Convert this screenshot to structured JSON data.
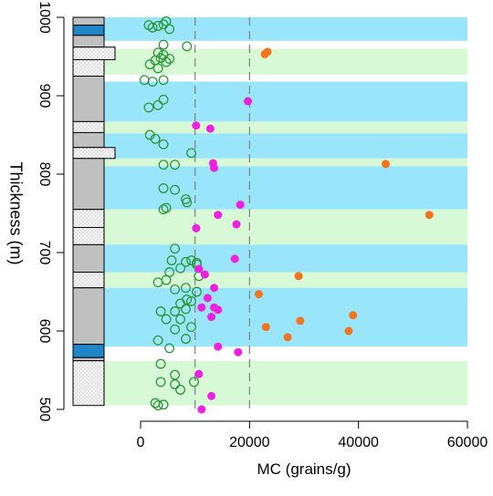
{
  "chart_data": {
    "type": "scatter",
    "xlabel": "MC (grains/g)",
    "ylabel": "Thickness (m)",
    "xlim": [
      -25000,
      60000
    ],
    "ylim": [
      500,
      1000
    ],
    "x_ticks": [
      0,
      20000,
      40000,
      60000
    ],
    "x_tick_labels": [
      "0",
      "20000",
      "40000",
      "60000"
    ],
    "y_ticks": [
      500,
      600,
      700,
      800,
      900,
      1000
    ],
    "y_tick_labels": [
      "500",
      "600",
      "700",
      "800",
      "900",
      "1000"
    ],
    "reference_lines_x": [
      10000,
      20000
    ],
    "colors": {
      "blue_band": "#99e5fb",
      "green_band": "#d8f9d6",
      "column_gray": "#c0c0c0",
      "column_blue": "#1f86c8",
      "green_marker": "#2a9a3a",
      "magenta_marker": "#f020e0",
      "orange_marker": "#f27320",
      "ref_line": "#808080"
    },
    "bands": [
      {
        "from": 970,
        "to": 1000,
        "color": "blue"
      },
      {
        "from": 927,
        "to": 960,
        "color": "green"
      },
      {
        "from": 867,
        "to": 918,
        "color": "blue"
      },
      {
        "from": 852,
        "to": 867,
        "color": "green"
      },
      {
        "from": 820,
        "to": 852,
        "color": "blue"
      },
      {
        "from": 810,
        "to": 820,
        "color": "green"
      },
      {
        "from": 755,
        "to": 810,
        "color": "blue"
      },
      {
        "from": 710,
        "to": 755,
        "color": "green"
      },
      {
        "from": 675,
        "to": 710,
        "color": "blue"
      },
      {
        "from": 655,
        "to": 675,
        "color": "green"
      },
      {
        "from": 580,
        "to": 655,
        "color": "blue"
      },
      {
        "from": 505,
        "to": 562,
        "color": "green"
      }
    ],
    "lithology": [
      {
        "from": 990,
        "to": 1000,
        "type": "gray"
      },
      {
        "from": 977,
        "to": 990,
        "type": "blue"
      },
      {
        "from": 962,
        "to": 977,
        "type": "gray"
      },
      {
        "from": 946,
        "to": 962,
        "type": "sandstone",
        "wide": true
      },
      {
        "from": 925,
        "to": 946,
        "type": "sandstone"
      },
      {
        "from": 867,
        "to": 925,
        "type": "gray"
      },
      {
        "from": 853,
        "to": 867,
        "type": "sandstone"
      },
      {
        "from": 834,
        "to": 853,
        "type": "gray"
      },
      {
        "from": 820,
        "to": 834,
        "type": "sandstone",
        "wide": true
      },
      {
        "from": 755,
        "to": 820,
        "type": "gray"
      },
      {
        "from": 732,
        "to": 755,
        "type": "sandstone"
      },
      {
        "from": 710,
        "to": 732,
        "type": "sandstone"
      },
      {
        "from": 675,
        "to": 710,
        "type": "gray"
      },
      {
        "from": 655,
        "to": 675,
        "type": "sandstone"
      },
      {
        "from": 583,
        "to": 655,
        "type": "gray"
      },
      {
        "from": 566,
        "to": 583,
        "type": "blue"
      },
      {
        "from": 562,
        "to": 566,
        "type": "gray"
      },
      {
        "from": 505,
        "to": 562,
        "type": "sandstone"
      }
    ],
    "series": [
      {
        "marker": "open-circle",
        "color": "green",
        "points": [
          [
            1500,
            990
          ],
          [
            2200,
            987
          ],
          [
            3200,
            989
          ],
          [
            4200,
            991
          ],
          [
            4700,
            995
          ],
          [
            5300,
            985
          ],
          [
            8500,
            963
          ],
          [
            4200,
            965
          ],
          [
            3200,
            955
          ],
          [
            4200,
            952
          ],
          [
            2700,
            945
          ],
          [
            3700,
            948
          ],
          [
            4700,
            943
          ],
          [
            5300,
            947
          ],
          [
            1700,
            940
          ],
          [
            3200,
            935
          ],
          [
            700,
            920
          ],
          [
            2200,
            918
          ],
          [
            4200,
            920
          ],
          [
            1500,
            885
          ],
          [
            3200,
            888
          ],
          [
            4200,
            895
          ],
          [
            1700,
            850
          ],
          [
            2700,
            845
          ],
          [
            4200,
            838
          ],
          [
            9300,
            827
          ],
          [
            4200,
            812
          ],
          [
            6300,
            812
          ],
          [
            4200,
            782
          ],
          [
            6300,
            780
          ],
          [
            8300,
            768
          ],
          [
            8500,
            764
          ],
          [
            4700,
            757
          ],
          [
            4200,
            755
          ],
          [
            6300,
            705
          ],
          [
            5700,
            690
          ],
          [
            8300,
            688
          ],
          [
            9300,
            690
          ],
          [
            10300,
            687
          ],
          [
            10300,
            685
          ],
          [
            7300,
            680
          ],
          [
            5300,
            675
          ],
          [
            10700,
            670
          ],
          [
            3200,
            662
          ],
          [
            4700,
            665
          ],
          [
            6300,
            653
          ],
          [
            8300,
            655
          ],
          [
            10300,
            650
          ],
          [
            8500,
            640
          ],
          [
            9300,
            638
          ],
          [
            7300,
            635
          ],
          [
            8300,
            628
          ],
          [
            3700,
            625
          ],
          [
            6300,
            625
          ],
          [
            4700,
            615
          ],
          [
            7300,
            615
          ],
          [
            9300,
            605
          ],
          [
            6300,
            602
          ],
          [
            8300,
            590
          ],
          [
            3200,
            588
          ],
          [
            5300,
            578
          ],
          [
            3700,
            558
          ],
          [
            6300,
            544
          ],
          [
            3700,
            535
          ],
          [
            6300,
            532
          ],
          [
            9800,
            535
          ],
          [
            7300,
            525
          ],
          [
            2700,
            508
          ],
          [
            3200,
            505
          ],
          [
            4200,
            506
          ]
        ]
      },
      {
        "marker": "filled-circle",
        "color": "magenta",
        "points": [
          [
            19700,
            893
          ],
          [
            10200,
            862
          ],
          [
            12800,
            858
          ],
          [
            13300,
            814
          ],
          [
            13500,
            808
          ],
          [
            18300,
            761
          ],
          [
            14200,
            748
          ],
          [
            17600,
            736
          ],
          [
            10200,
            731
          ],
          [
            17300,
            692
          ],
          [
            10700,
            679
          ],
          [
            11800,
            672
          ],
          [
            12300,
            642
          ],
          [
            13500,
            655
          ],
          [
            11200,
            630
          ],
          [
            13500,
            630
          ],
          [
            14200,
            627
          ],
          [
            13000,
            618
          ],
          [
            14200,
            580
          ],
          [
            17900,
            573
          ],
          [
            10700,
            545
          ],
          [
            13000,
            517
          ],
          [
            11200,
            500
          ]
        ]
      },
      {
        "marker": "filled-circle",
        "color": "orange",
        "points": [
          [
            23300,
            956
          ],
          [
            22800,
            953
          ],
          [
            45000,
            813
          ],
          [
            53000,
            748
          ],
          [
            29000,
            670
          ],
          [
            21700,
            647
          ],
          [
            39000,
            620
          ],
          [
            29300,
            613
          ],
          [
            23000,
            605
          ],
          [
            38200,
            600
          ],
          [
            27000,
            592
          ]
        ]
      }
    ]
  }
}
